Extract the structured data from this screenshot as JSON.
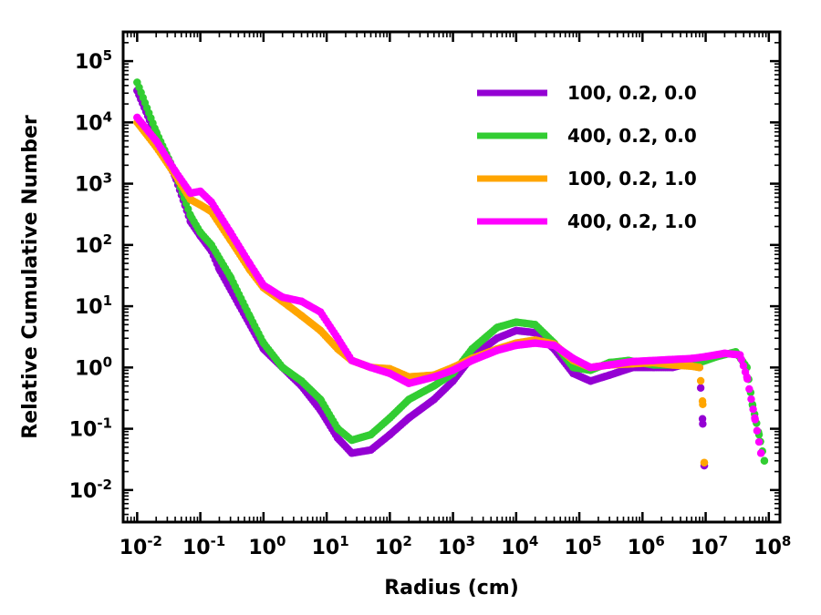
{
  "chart_data": {
    "type": "scatter",
    "x_scale": "log",
    "y_scale": "log",
    "xlabel": "Radius (cm)",
    "ylabel": "Relative Cumulative Number",
    "xlim": [
      0.006,
      150000000
    ],
    "ylim": [
      0.003,
      300000
    ],
    "x_ticks": [
      {
        "value": 0.01,
        "base": "10",
        "exp": "-2"
      },
      {
        "value": 0.1,
        "base": "10",
        "exp": "-1"
      },
      {
        "value": 1,
        "base": "10",
        "exp": "0"
      },
      {
        "value": 10,
        "base": "10",
        "exp": "1"
      },
      {
        "value": 100,
        "base": "10",
        "exp": "2"
      },
      {
        "value": 1000,
        "base": "10",
        "exp": "3"
      },
      {
        "value": 10000,
        "base": "10",
        "exp": "4"
      },
      {
        "value": 100000,
        "base": "10",
        "exp": "5"
      },
      {
        "value": 1000000,
        "base": "10",
        "exp": "6"
      },
      {
        "value": 10000000,
        "base": "10",
        "exp": "7"
      },
      {
        "value": 100000000,
        "base": "10",
        "exp": "8"
      }
    ],
    "y_ticks": [
      {
        "value": 0.01,
        "base": "10",
        "exp": "-2"
      },
      {
        "value": 0.1,
        "base": "10",
        "exp": "-1"
      },
      {
        "value": 1,
        "base": "10",
        "exp": "0"
      },
      {
        "value": 10,
        "base": "10",
        "exp": "1"
      },
      {
        "value": 100,
        "base": "10",
        "exp": "2"
      },
      {
        "value": 1000,
        "base": "10",
        "exp": "3"
      },
      {
        "value": 10000,
        "base": "10",
        "exp": "4"
      },
      {
        "value": 100000,
        "base": "10",
        "exp": "5"
      }
    ],
    "legend_position": "top-right",
    "series": [
      {
        "name": "100, 0.2, 0.0",
        "color": "#9400D3",
        "points": [
          [
            0.01,
            33000
          ],
          [
            0.02,
            6000
          ],
          [
            0.04,
            1300
          ],
          [
            0.07,
            240
          ],
          [
            0.1,
            140
          ],
          [
            0.15,
            80
          ],
          [
            0.2,
            40
          ],
          [
            0.4,
            11
          ],
          [
            1,
            2
          ],
          [
            2,
            1
          ],
          [
            4,
            0.5
          ],
          [
            8,
            0.2
          ],
          [
            15,
            0.07
          ],
          [
            25,
            0.04
          ],
          [
            50,
            0.045
          ],
          [
            100,
            0.08
          ],
          [
            200,
            0.15
          ],
          [
            500,
            0.3
          ],
          [
            1000,
            0.6
          ],
          [
            2000,
            1.5
          ],
          [
            5000,
            3
          ],
          [
            10000,
            4
          ],
          [
            20000,
            3.7
          ],
          [
            40000,
            2
          ],
          [
            80000,
            0.8
          ],
          [
            150000,
            0.6
          ],
          [
            300000,
            0.75
          ],
          [
            700000,
            1
          ],
          [
            1500000,
            1
          ],
          [
            3000000,
            1
          ],
          [
            6000000,
            1.2
          ],
          [
            8000000,
            1
          ],
          [
            9000000,
            0.12
          ],
          [
            9500000,
            0.025
          ]
        ]
      },
      {
        "name": "400, 0.2, 0.0",
        "color": "#32CD32",
        "points": [
          [
            0.01,
            45000
          ],
          [
            0.02,
            7000
          ],
          [
            0.04,
            1500
          ],
          [
            0.07,
            300
          ],
          [
            0.1,
            160
          ],
          [
            0.15,
            100
          ],
          [
            0.3,
            30
          ],
          [
            0.6,
            7
          ],
          [
            1,
            2.5
          ],
          [
            2,
            1
          ],
          [
            4,
            0.6
          ],
          [
            8,
            0.3
          ],
          [
            15,
            0.1
          ],
          [
            25,
            0.065
          ],
          [
            50,
            0.08
          ],
          [
            100,
            0.15
          ],
          [
            200,
            0.3
          ],
          [
            500,
            0.5
          ],
          [
            1000,
            0.8
          ],
          [
            2000,
            2
          ],
          [
            5000,
            4.5
          ],
          [
            10000,
            5.5
          ],
          [
            20000,
            5
          ],
          [
            40000,
            2.5
          ],
          [
            80000,
            1
          ],
          [
            150000,
            0.9
          ],
          [
            300000,
            1.2
          ],
          [
            600000,
            1.3
          ],
          [
            1500000,
            1.1
          ],
          [
            4000000,
            1.1
          ],
          [
            8000000,
            1.2
          ],
          [
            15000000,
            1.5
          ],
          [
            30000000,
            1.8
          ],
          [
            45000000,
            1
          ],
          [
            55000000,
            0.25
          ],
          [
            70000000,
            0.08
          ],
          [
            85000000,
            0.03
          ]
        ]
      },
      {
        "name": "100, 0.2, 1.0",
        "color": "#FFA500",
        "points": [
          [
            0.01,
            10000
          ],
          [
            0.02,
            4000
          ],
          [
            0.04,
            1400
          ],
          [
            0.07,
            550
          ],
          [
            0.1,
            450
          ],
          [
            0.15,
            350
          ],
          [
            0.3,
            120
          ],
          [
            0.6,
            40
          ],
          [
            1,
            20
          ],
          [
            2,
            12
          ],
          [
            4,
            7
          ],
          [
            8,
            4
          ],
          [
            15,
            2
          ],
          [
            25,
            1.3
          ],
          [
            50,
            1
          ],
          [
            100,
            0.95
          ],
          [
            200,
            0.7
          ],
          [
            500,
            0.75
          ],
          [
            1000,
            1
          ],
          [
            2000,
            1.4
          ],
          [
            5000,
            2
          ],
          [
            10000,
            2.5
          ],
          [
            20000,
            2.8
          ],
          [
            40000,
            2.4
          ],
          [
            80000,
            1.3
          ],
          [
            150000,
            1
          ],
          [
            300000,
            1.1
          ],
          [
            700000,
            1.15
          ],
          [
            1500000,
            1.2
          ],
          [
            3000000,
            1.1
          ],
          [
            6000000,
            1.05
          ],
          [
            8000000,
            1
          ],
          [
            9000000,
            0.25
          ],
          [
            9500000,
            0.028
          ]
        ]
      },
      {
        "name": "400, 0.2, 1.0",
        "color": "#FF00FF",
        "points": [
          [
            0.01,
            12000
          ],
          [
            0.02,
            5000
          ],
          [
            0.04,
            1600
          ],
          [
            0.07,
            700
          ],
          [
            0.1,
            750
          ],
          [
            0.15,
            500
          ],
          [
            0.3,
            160
          ],
          [
            0.6,
            50
          ],
          [
            1,
            22
          ],
          [
            2,
            14
          ],
          [
            4,
            12
          ],
          [
            8,
            8
          ],
          [
            15,
            3
          ],
          [
            25,
            1.3
          ],
          [
            50,
            1
          ],
          [
            100,
            0.8
          ],
          [
            200,
            0.55
          ],
          [
            500,
            0.7
          ],
          [
            1000,
            0.9
          ],
          [
            2000,
            1.3
          ],
          [
            5000,
            1.9
          ],
          [
            10000,
            2.3
          ],
          [
            20000,
            2.5
          ],
          [
            40000,
            2.3
          ],
          [
            80000,
            1.4
          ],
          [
            150000,
            1
          ],
          [
            300000,
            1.1
          ],
          [
            700000,
            1.25
          ],
          [
            1500000,
            1.3
          ],
          [
            3000000,
            1.35
          ],
          [
            6000000,
            1.4
          ],
          [
            10000000,
            1.5
          ],
          [
            20000000,
            1.7
          ],
          [
            35000000,
            1.6
          ],
          [
            45000000,
            0.7
          ],
          [
            60000000,
            0.15
          ],
          [
            75000000,
            0.04
          ]
        ]
      }
    ]
  }
}
